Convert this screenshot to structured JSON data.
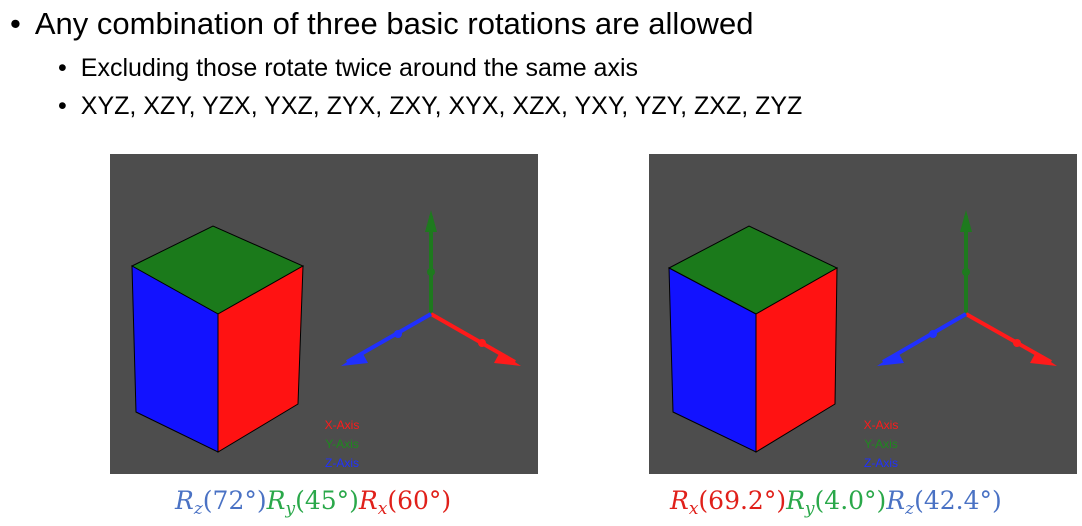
{
  "bullets": [
    {
      "marker": "•",
      "text": "Any combination of three basic rotations are allowed"
    },
    {
      "marker": "•",
      "text": "Excluding those rotate twice around the same axis"
    },
    {
      "marker": "•",
      "text": "XYZ, XZY, YZX, YXZ, ZYX, ZXY, XYX, XZX, YXY, YZY, ZXZ, ZYZ"
    }
  ],
  "colors": {
    "viewport_bg": "#4d4d4d",
    "x_axis": "#ff1a1a",
    "y_axis": "#1e7a1e",
    "z_axis": "#2030ff",
    "formula_blue": "#4a72c4",
    "formula_green": "#2aa84a",
    "formula_red": "#e0201a"
  },
  "viewports": [
    {
      "legend": {
        "x": "X-Axis",
        "y": "Y-Axis",
        "z": "Z-Axis"
      },
      "formula": [
        {
          "symbol": "R",
          "sub": "z",
          "angle": "(72°)",
          "color": "#4a72c4"
        },
        {
          "symbol": "R",
          "sub": "y",
          "angle": "(45°)",
          "color": "#2aa84a"
        },
        {
          "symbol": "R",
          "sub": "x",
          "angle": "(60°)",
          "color": "#e0201a"
        }
      ]
    },
    {
      "legend": {
        "x": "X-Axis",
        "y": "Y-Axis",
        "z": "Z-Axis"
      },
      "formula": [
        {
          "symbol": "R",
          "sub": "x",
          "angle": "(69.2°)",
          "color": "#e0201a"
        },
        {
          "symbol": "R",
          "sub": "y",
          "angle": "(4.0°)",
          "color": "#2aa84a"
        },
        {
          "symbol": "R",
          "sub": "z",
          "angle": "(42.4°)",
          "color": "#4a72c4"
        }
      ]
    }
  ]
}
